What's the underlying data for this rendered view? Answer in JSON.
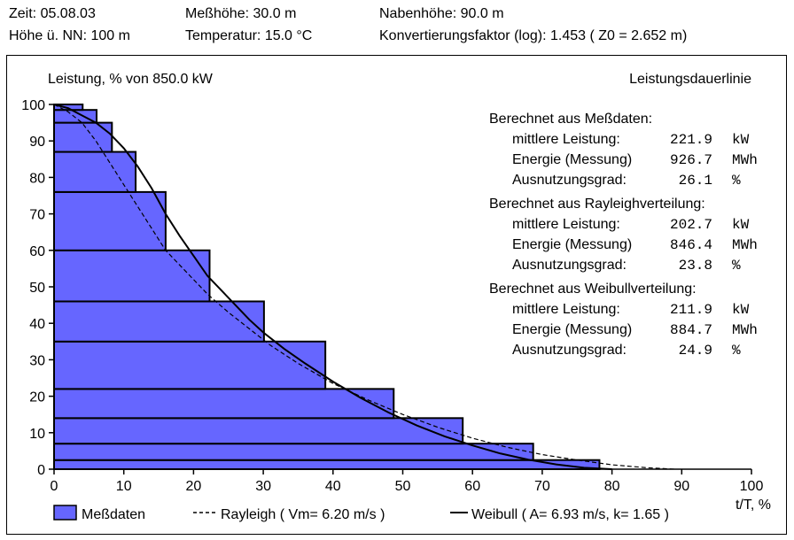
{
  "header": {
    "zeit": "Zeit:  05.08.03",
    "hoehe_nn": "Höhe ü. NN:  100 m",
    "messhoehe": "Meßhöhe: 30.0 m",
    "temperatur": "Temperatur: 15.0 °C",
    "nabenhoehe": "Nabenhöhe: 90.0 m",
    "konvertierung": "Konvertierungsfaktor (log):  1.453 ( Z0 = 2.652 m)"
  },
  "chart_data": {
    "type": "bar",
    "title": "Leistungsdauerlinie",
    "ylabel": "Leistung, % von 850.0 kW",
    "xlabel": "t/T, %",
    "xlim": [
      0,
      100
    ],
    "ylim": [
      0,
      100
    ],
    "xticks": [
      0,
      10,
      20,
      30,
      40,
      50,
      60,
      70,
      80,
      90,
      100
    ],
    "yticks": [
      0,
      10,
      20,
      30,
      40,
      50,
      60,
      70,
      80,
      90,
      100
    ],
    "bars_mess": [
      {
        "y0": 0,
        "y1": 2.5,
        "x": 78.2
      },
      {
        "y0": 2.5,
        "y1": 7,
        "x": 68.7
      },
      {
        "y0": 7,
        "y1": 14,
        "x": 58.6
      },
      {
        "y0": 14,
        "y1": 22,
        "x": 48.7
      },
      {
        "y0": 22,
        "y1": 35,
        "x": 38.9
      },
      {
        "y0": 35,
        "y1": 46,
        "x": 30.1
      },
      {
        "y0": 46,
        "y1": 60,
        "x": 22.3
      },
      {
        "y0": 60,
        "y1": 76,
        "x": 16.0
      },
      {
        "y0": 76,
        "y1": 87,
        "x": 11.7
      },
      {
        "y0": 87,
        "y1": 95,
        "x": 8.3
      },
      {
        "y0": 95,
        "y1": 98.5,
        "x": 6.1
      },
      {
        "y0": 98.5,
        "y1": 100,
        "x": 4.1
      }
    ],
    "rayleigh": {
      "x": [
        0,
        2,
        4,
        6,
        8,
        10,
        12,
        14,
        16,
        18,
        20,
        22,
        25,
        28,
        31,
        35,
        40,
        45,
        50,
        55,
        60,
        65,
        70,
        75,
        80,
        85,
        89
      ],
      "y": [
        100,
        98,
        95,
        90,
        84,
        78,
        72,
        66,
        60,
        56,
        52,
        48,
        43,
        38.5,
        34,
        29,
        23.5,
        19,
        15,
        11.5,
        8.5,
        6,
        4,
        2.5,
        1.2,
        0.4,
        0
      ]
    },
    "weibull": {
      "x": [
        0,
        2,
        4,
        6,
        8,
        10,
        12,
        14,
        16,
        18,
        20,
        22,
        24,
        26,
        28,
        30,
        33,
        36,
        40,
        44,
        48,
        52,
        56,
        60,
        64,
        68,
        72,
        76,
        80
      ],
      "y": [
        100,
        99,
        97,
        95,
        92,
        88,
        83,
        77,
        70,
        64,
        58.5,
        53,
        49,
        45,
        41,
        37.5,
        33,
        29,
        24,
        19.5,
        15.5,
        12,
        9,
        6.5,
        4.3,
        2.6,
        1.3,
        0.4,
        0
      ]
    },
    "legend": [
      {
        "name": "Meßdaten"
      },
      {
        "name": "Rayleigh ( Vm= 6.20 m/s )"
      },
      {
        "name": "Weibull ( A= 6.93 m/s, k= 1.65 )"
      }
    ]
  },
  "stats": [
    {
      "heading": "Berechnet aus Meßdaten:",
      "rows": [
        {
          "label": "mittlere Leistung:",
          "value": "221.9",
          "unit": "kW"
        },
        {
          "label": "Energie (Messung)",
          "value": "926.7",
          "unit": "MWh"
        },
        {
          "label": "Ausnutzungsgrad:",
          "value": "26.1",
          "unit": "%"
        }
      ]
    },
    {
      "heading": "Berechnet aus Rayleighverteilung:",
      "rows": [
        {
          "label": "mittlere Leistung:",
          "value": "202.7",
          "unit": "kW"
        },
        {
          "label": "Energie (Messung)",
          "value": "846.4",
          "unit": "MWh"
        },
        {
          "label": "Ausnutzungsgrad:",
          "value": "23.8",
          "unit": "%"
        }
      ]
    },
    {
      "heading": "Berechnet aus Weibullverteilung:",
      "rows": [
        {
          "label": "mittlere Leistung:",
          "value": "211.9",
          "unit": "kW"
        },
        {
          "label": "Energie (Messung)",
          "value": "884.7",
          "unit": "MWh"
        },
        {
          "label": "Ausnutzungsgrad:",
          "value": "24.9",
          "unit": "%"
        }
      ]
    }
  ],
  "colors": {
    "bar_fill": "#6666ff",
    "line": "#000000",
    "rayleigh_inner": "#ffffff"
  }
}
